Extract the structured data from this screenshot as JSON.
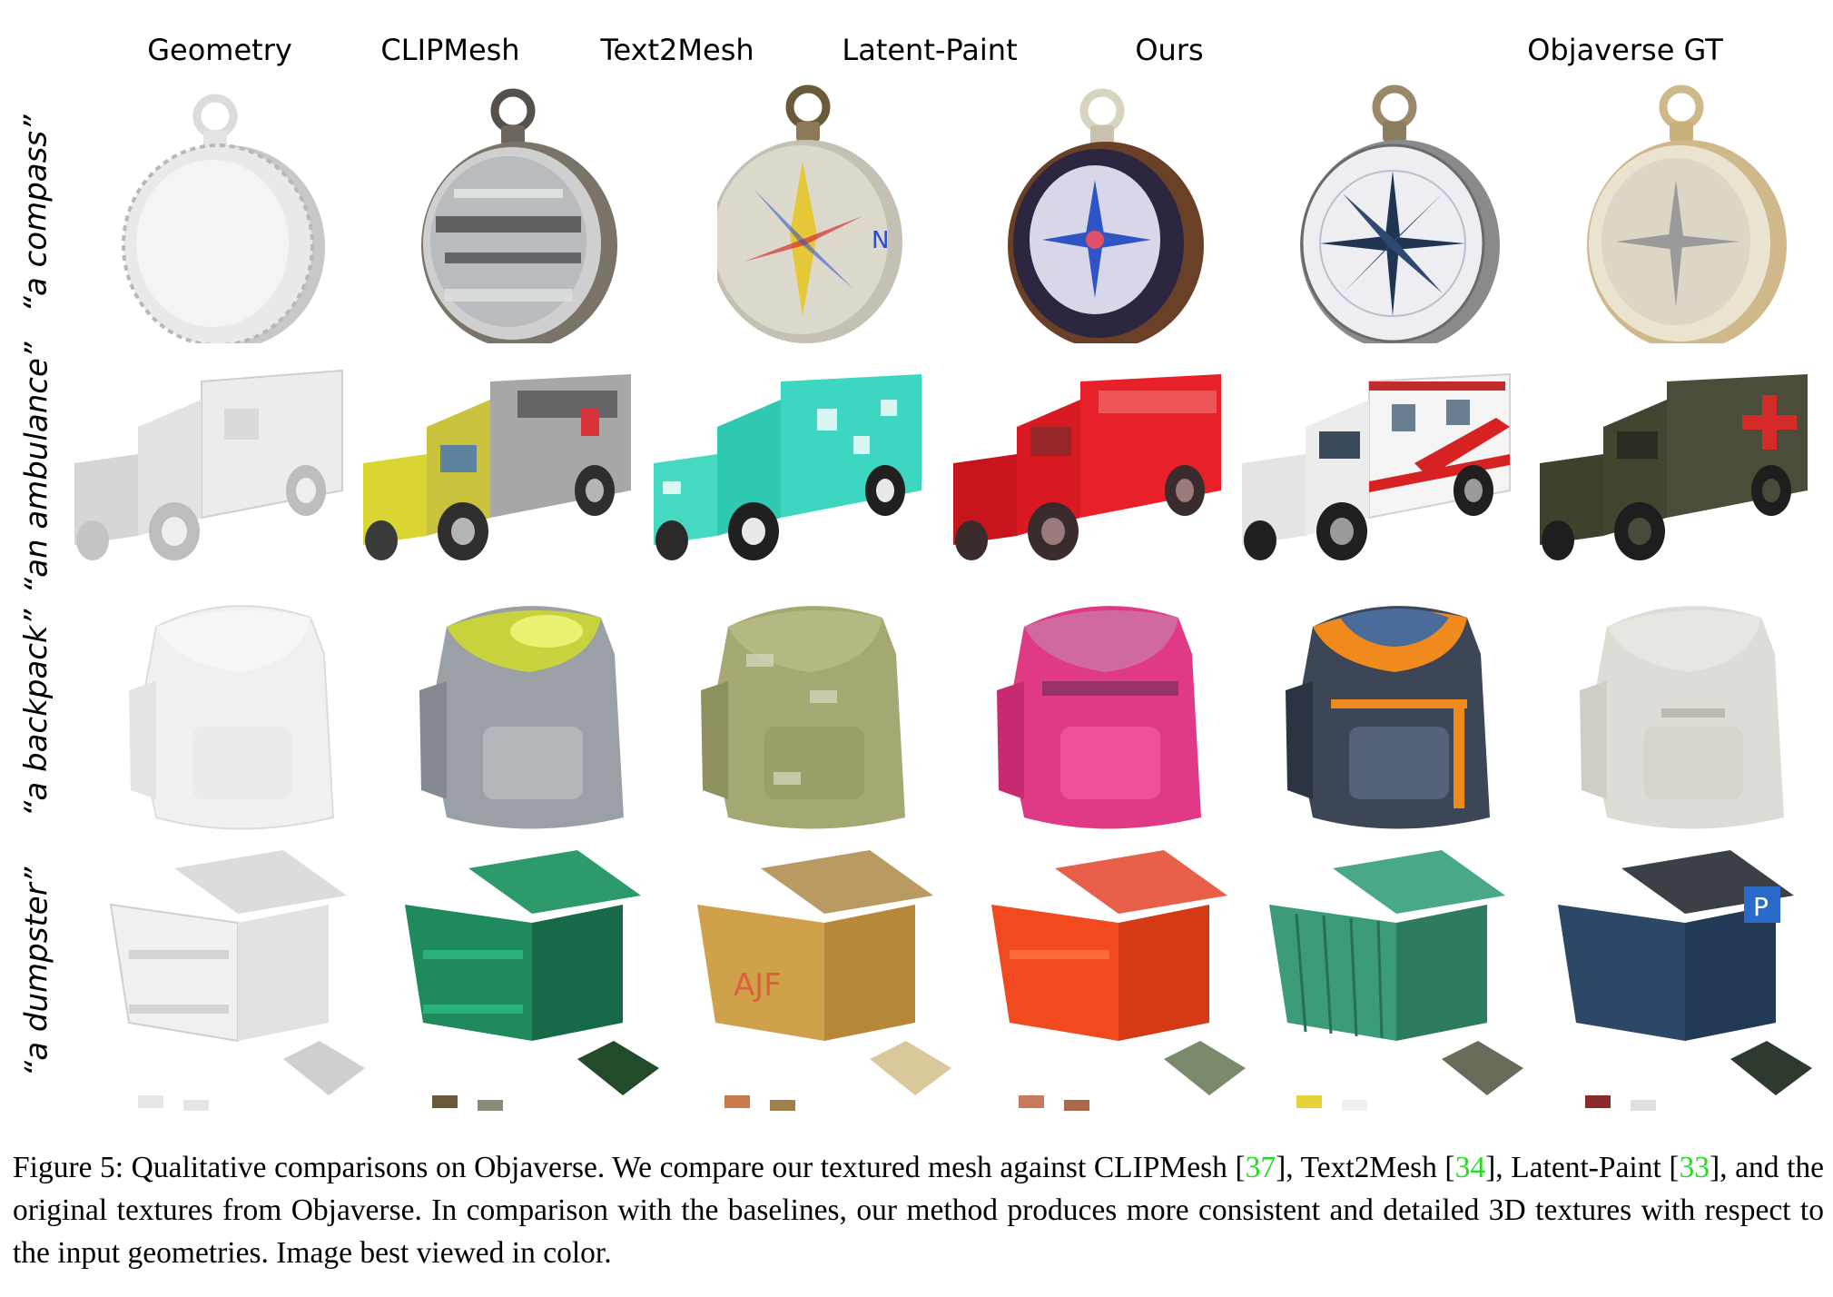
{
  "figure": {
    "columns": [
      "Geometry",
      "CLIPMesh",
      "Text2Mesh",
      "Latent-Paint",
      "Ours",
      "Objaverse GT"
    ],
    "rows": [
      {
        "label": "“a compass”",
        "object": "compass"
      },
      {
        "label": "“an ambulance”",
        "object": "ambulance"
      },
      {
        "label": "“a backpack”",
        "object": "backpack"
      },
      {
        "label": "“a dumpster”",
        "object": "dumpster"
      }
    ],
    "colors": {
      "geometry": "#efefef",
      "clipmesh": "#9aa0a6",
      "text2mesh": "#3dd6c0",
      "latent_paint": "#e8202a",
      "ours": "#ffffff",
      "gt": "#4a4d3a",
      "citation": "#22dd22"
    }
  },
  "caption": {
    "p1": "Figure 5: Qualitative comparisons on Objaverse.  We compare our textured mesh against CLIPMesh [",
    "r1": "37",
    "p2": "], Text2Mesh [",
    "r2": "34",
    "p3": "], Latent-Paint [",
    "r3": "33",
    "p4": "], and the original textures from Objaverse.  In comparison with the baselines, our method produces more consistent and detailed 3D textures with respect to the input geometries. Image best viewed in color."
  }
}
